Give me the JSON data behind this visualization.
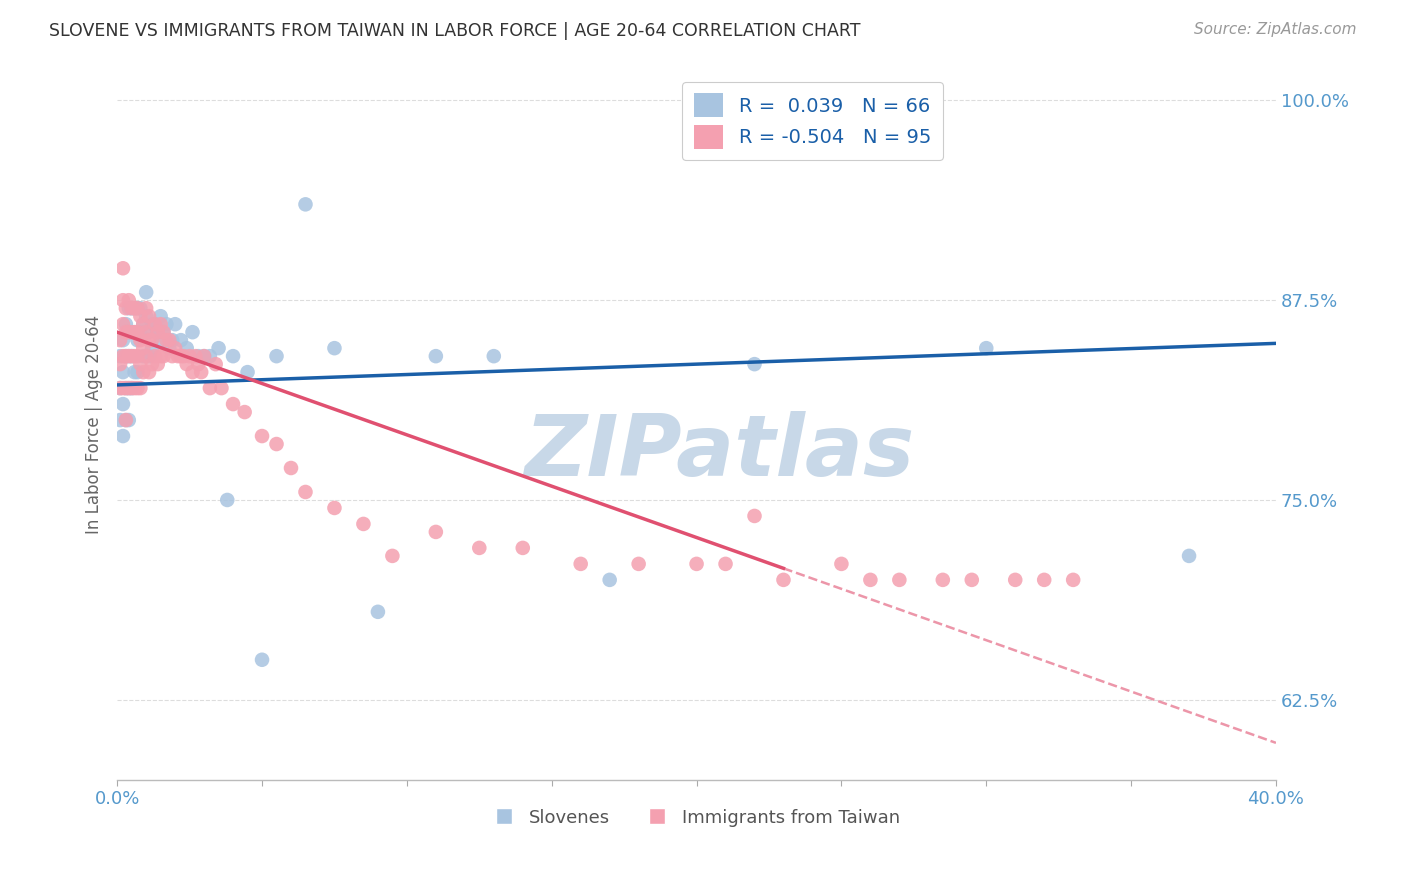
{
  "title": "SLOVENE VS IMMIGRANTS FROM TAIWAN IN LABOR FORCE | AGE 20-64 CORRELATION CHART",
  "source": "Source: ZipAtlas.com",
  "xlabel": "",
  "ylabel": "In Labor Force | Age 20-64",
  "xlim": [
    0.0,
    0.4
  ],
  "ylim": [
    0.575,
    1.02
  ],
  "yticks": [
    0.625,
    0.75,
    0.875,
    1.0
  ],
  "ytick_labels": [
    "62.5%",
    "75.0%",
    "87.5%",
    "100.0%"
  ],
  "xticks": [
    0.0,
    0.05,
    0.1,
    0.15,
    0.2,
    0.25,
    0.3,
    0.35,
    0.4
  ],
  "xtick_labels": [
    "0.0%",
    "",
    "",
    "",
    "",
    "",
    "",
    "",
    "40.0%"
  ],
  "blue_R": 0.039,
  "blue_N": 66,
  "pink_R": -0.504,
  "pink_N": 95,
  "blue_color": "#a8c4e0",
  "pink_color": "#f4a0b0",
  "blue_line_color": "#1a5fa8",
  "pink_line_color": "#e05070",
  "pink_line_solid_end": 0.23,
  "watermark": "ZIPatlas",
  "watermark_color": "#c8d8e8",
  "background_color": "#ffffff",
  "grid_color": "#dddddd",
  "title_color": "#333333",
  "axis_label_color": "#5599cc",
  "blue_scatter_x": [
    0.001,
    0.001,
    0.001,
    0.002,
    0.002,
    0.002,
    0.002,
    0.003,
    0.003,
    0.003,
    0.003,
    0.004,
    0.004,
    0.004,
    0.004,
    0.004,
    0.005,
    0.005,
    0.005,
    0.005,
    0.006,
    0.006,
    0.006,
    0.007,
    0.007,
    0.007,
    0.008,
    0.008,
    0.009,
    0.009,
    0.01,
    0.01,
    0.011,
    0.011,
    0.012,
    0.012,
    0.013,
    0.014,
    0.015,
    0.015,
    0.016,
    0.017,
    0.018,
    0.019,
    0.02,
    0.022,
    0.024,
    0.026,
    0.028,
    0.03,
    0.032,
    0.035,
    0.038,
    0.04,
    0.045,
    0.05,
    0.055,
    0.065,
    0.075,
    0.09,
    0.11,
    0.13,
    0.17,
    0.22,
    0.3,
    0.37
  ],
  "blue_scatter_y": [
    0.84,
    0.82,
    0.8,
    0.85,
    0.83,
    0.81,
    0.79,
    0.86,
    0.84,
    0.82,
    0.8,
    0.87,
    0.855,
    0.84,
    0.82,
    0.8,
    0.87,
    0.855,
    0.84,
    0.82,
    0.87,
    0.855,
    0.83,
    0.87,
    0.85,
    0.83,
    0.87,
    0.855,
    0.86,
    0.84,
    0.88,
    0.865,
    0.855,
    0.84,
    0.86,
    0.845,
    0.86,
    0.855,
    0.865,
    0.85,
    0.855,
    0.86,
    0.845,
    0.85,
    0.86,
    0.85,
    0.845,
    0.855,
    0.84,
    0.84,
    0.84,
    0.845,
    0.75,
    0.84,
    0.83,
    0.65,
    0.84,
    0.935,
    0.845,
    0.68,
    0.84,
    0.84,
    0.7,
    0.835,
    0.845,
    0.715
  ],
  "pink_scatter_x": [
    0.001,
    0.001,
    0.001,
    0.002,
    0.002,
    0.002,
    0.002,
    0.002,
    0.003,
    0.003,
    0.003,
    0.003,
    0.003,
    0.004,
    0.004,
    0.004,
    0.004,
    0.005,
    0.005,
    0.005,
    0.005,
    0.006,
    0.006,
    0.006,
    0.006,
    0.007,
    0.007,
    0.007,
    0.007,
    0.008,
    0.008,
    0.008,
    0.008,
    0.009,
    0.009,
    0.009,
    0.01,
    0.01,
    0.01,
    0.011,
    0.011,
    0.011,
    0.012,
    0.012,
    0.013,
    0.013,
    0.014,
    0.014,
    0.015,
    0.015,
    0.016,
    0.016,
    0.017,
    0.018,
    0.019,
    0.02,
    0.021,
    0.022,
    0.023,
    0.024,
    0.025,
    0.026,
    0.027,
    0.028,
    0.029,
    0.03,
    0.032,
    0.034,
    0.036,
    0.04,
    0.044,
    0.05,
    0.055,
    0.06,
    0.065,
    0.075,
    0.085,
    0.095,
    0.11,
    0.125,
    0.14,
    0.16,
    0.18,
    0.2,
    0.21,
    0.22,
    0.23,
    0.25,
    0.26,
    0.27,
    0.285,
    0.295,
    0.31,
    0.32,
    0.33
  ],
  "pink_scatter_y": [
    0.85,
    0.835,
    0.82,
    0.895,
    0.875,
    0.86,
    0.84,
    0.82,
    0.87,
    0.855,
    0.84,
    0.82,
    0.8,
    0.875,
    0.855,
    0.84,
    0.82,
    0.87,
    0.855,
    0.84,
    0.82,
    0.87,
    0.855,
    0.84,
    0.82,
    0.87,
    0.855,
    0.84,
    0.82,
    0.865,
    0.85,
    0.835,
    0.82,
    0.86,
    0.845,
    0.83,
    0.87,
    0.855,
    0.84,
    0.865,
    0.85,
    0.83,
    0.85,
    0.835,
    0.86,
    0.84,
    0.855,
    0.835,
    0.86,
    0.84,
    0.855,
    0.84,
    0.85,
    0.85,
    0.84,
    0.845,
    0.84,
    0.84,
    0.84,
    0.835,
    0.84,
    0.83,
    0.84,
    0.835,
    0.83,
    0.84,
    0.82,
    0.835,
    0.82,
    0.81,
    0.805,
    0.79,
    0.785,
    0.77,
    0.755,
    0.745,
    0.735,
    0.715,
    0.73,
    0.72,
    0.72,
    0.71,
    0.71,
    0.71,
    0.71,
    0.74,
    0.7,
    0.71,
    0.7,
    0.7,
    0.7,
    0.7,
    0.7,
    0.7,
    0.7
  ],
  "blue_line_x0": 0.0,
  "blue_line_y0": 0.822,
  "blue_line_x1": 0.4,
  "blue_line_y1": 0.848,
  "pink_line_x0": 0.0,
  "pink_line_y0": 0.855,
  "pink_line_x1": 0.4,
  "pink_line_y1": 0.598
}
